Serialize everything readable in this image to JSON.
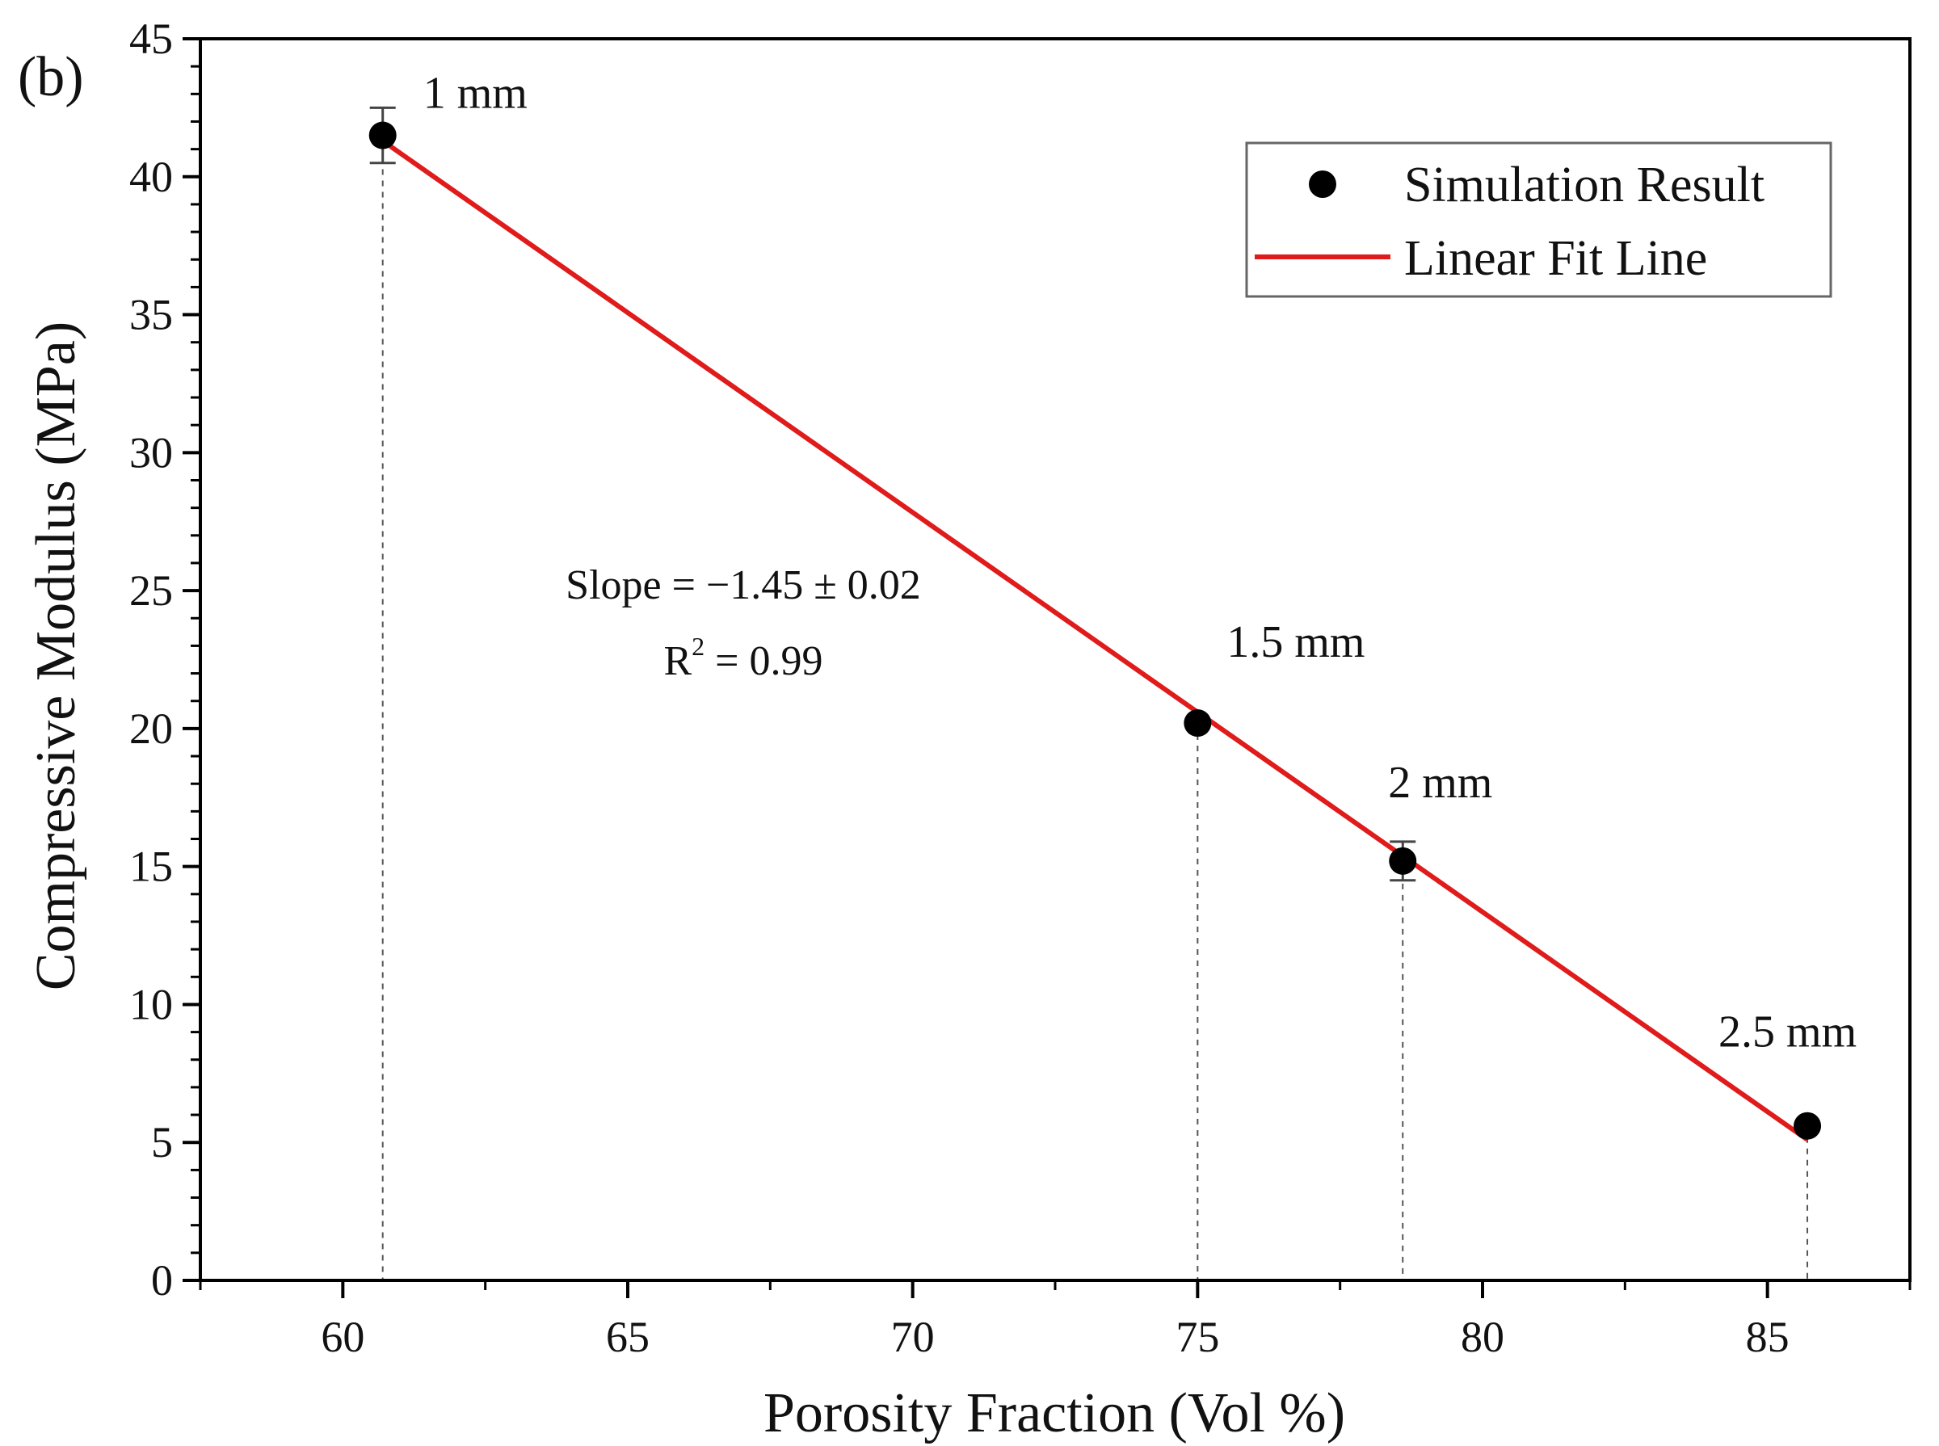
{
  "chart_data": {
    "type": "scatter",
    "panel_label": "(b)",
    "xlabel": "Porosity Fraction (Vol %)",
    "ylabel": "Compressive Modulus (MPa)",
    "xlim": [
      57.5,
      87.5
    ],
    "ylim": [
      0,
      45
    ],
    "x_ticks": [
      "60",
      "65",
      "70",
      "75",
      "80",
      "85"
    ],
    "y_ticks": [
      "0",
      "5",
      "10",
      "15",
      "20",
      "25",
      "30",
      "35",
      "40",
      "45"
    ],
    "series": [
      {
        "name": "Simulation Result",
        "kind": "points",
        "color": "#000000",
        "points": [
          {
            "x": 60.7,
            "y": 41.5,
            "err": 1.0,
            "label": "1 mm"
          },
          {
            "x": 75.0,
            "y": 20.2,
            "err": 0.0,
            "label": "1.5 mm"
          },
          {
            "x": 78.6,
            "y": 15.2,
            "err": 0.7,
            "label": "2 mm"
          },
          {
            "x": 85.7,
            "y": 5.6,
            "err": 0.0,
            "label": "2.5 mm"
          }
        ]
      },
      {
        "name": "Linear Fit Line",
        "kind": "line",
        "color": "#e01b1b",
        "x": [
          60.7,
          85.7
        ],
        "y": [
          41.3,
          5.1
        ]
      }
    ],
    "annotations": {
      "slope": "Slope = −1.45 ± 0.02",
      "r2_prefix": "R",
      "r2_sup": "2",
      "r2_suffix": " = 0.99"
    },
    "legend_position": "top-right",
    "grid": false,
    "drop_lines": true
  }
}
